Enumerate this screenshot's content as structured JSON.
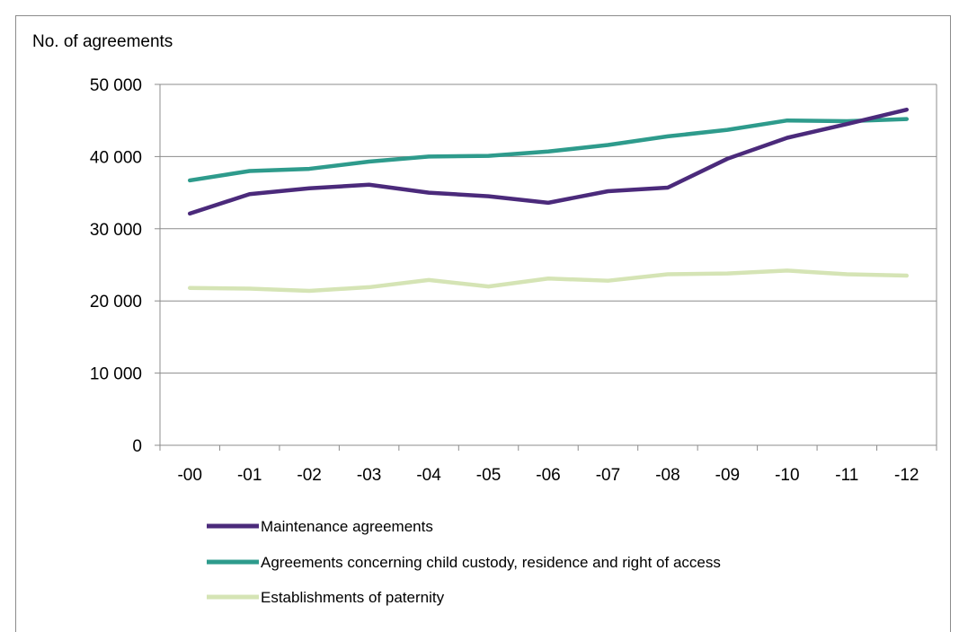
{
  "chart_data": {
    "type": "line",
    "ylabel": "No. of agreements",
    "xlabel": "",
    "title": "",
    "ylim": [
      0,
      50000
    ],
    "yticks": [
      0,
      10000,
      20000,
      30000,
      40000,
      50000
    ],
    "ytick_labels": [
      "0",
      "10 000",
      "20 000",
      "30 000",
      "40 000",
      "50 000"
    ],
    "categories": [
      "-00",
      "-01",
      "-02",
      "-03",
      "-04",
      "-05",
      "-06",
      "-07",
      "-08",
      "-09",
      "-10",
      "-11",
      "-12"
    ],
    "grid": true,
    "legend_position": "bottom",
    "series": [
      {
        "name": "Maintenance agreements",
        "color": "#4b2a7b",
        "values": [
          32100,
          34800,
          35600,
          36100,
          35000,
          34500,
          33600,
          35200,
          35700,
          39700,
          42600,
          44500,
          46500
        ]
      },
      {
        "name": "Agreements concerning child custody, residence and right of access",
        "color": "#2e9b8c",
        "values": [
          36700,
          38000,
          38300,
          39300,
          40000,
          40100,
          40700,
          41600,
          42800,
          43700,
          45000,
          44900,
          45200
        ]
      },
      {
        "name": "Establishments of paternity",
        "color": "#d5e4b5",
        "values": [
          21800,
          21700,
          21400,
          21900,
          22900,
          22000,
          23100,
          22800,
          23700,
          23800,
          24200,
          23700,
          23500
        ]
      }
    ]
  }
}
